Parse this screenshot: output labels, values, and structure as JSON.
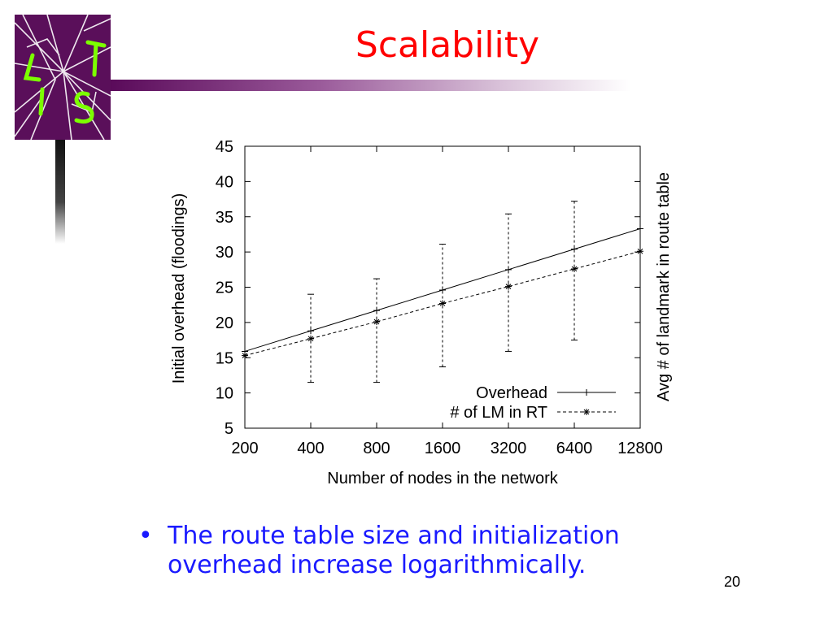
{
  "slide": {
    "title": "Scalability",
    "bullet": "The route table size and initialization overhead increase logarithmically.",
    "page_number": "20",
    "logo_icon": "lts-cracked-glass-logo",
    "colors": {
      "title": "#ff0000",
      "bullet": "#1a1aff",
      "logo_bg": "#5a0f5a",
      "logo_text": "#7cff00"
    }
  },
  "chart_data": {
    "type": "line",
    "categories": [
      "200",
      "400",
      "800",
      "1600",
      "3200",
      "6400",
      "12800"
    ],
    "xlabel": "Number of nodes in the network",
    "ylabel": "Initial overhead (floodings)",
    "y2label": "Avg # of landmark in route table",
    "ylim": [
      5,
      45
    ],
    "yticks": [
      5,
      10,
      15,
      20,
      25,
      30,
      35,
      40,
      45
    ],
    "grid": false,
    "legend_position": "bottom-right",
    "series": [
      {
        "name": "Overhead",
        "marker": "+",
        "style": "solid",
        "values": [
          15.9,
          18.8,
          21.7,
          24.6,
          27.5,
          30.4,
          33.3
        ]
      },
      {
        "name": "# of LM in RT",
        "marker": "*",
        "style": "dashed",
        "values": [
          15.3,
          17.7,
          20.1,
          22.7,
          25.1,
          27.6,
          30.1
        ],
        "error_low": [
          15.3,
          11.5,
          11.5,
          13.7,
          15.9,
          17.5,
          30.1
        ],
        "error_high": [
          15.3,
          24.0,
          26.2,
          31.1,
          35.4,
          37.2,
          30.1
        ]
      }
    ]
  }
}
